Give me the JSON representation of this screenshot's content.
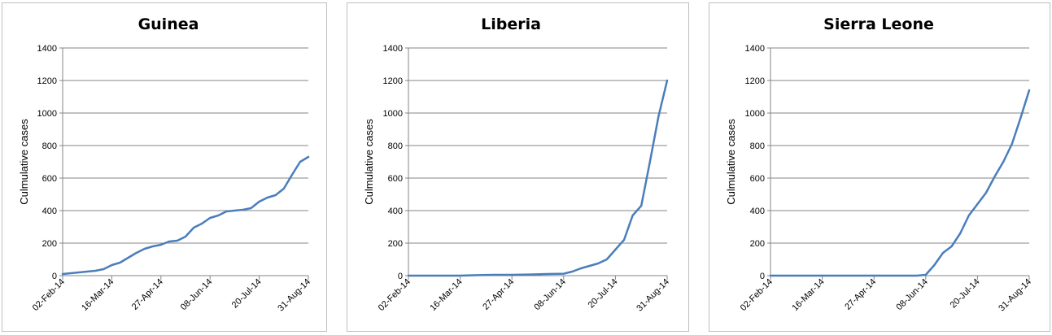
{
  "chart_data": [
    {
      "type": "line",
      "title": "Guinea",
      "ylabel": "Culmulative cases",
      "xlabel": "",
      "ylim": [
        0,
        1400
      ],
      "yticks": [
        0,
        200,
        400,
        600,
        800,
        1000,
        1200,
        1400
      ],
      "xticks": [
        "02-Feb-14",
        "16-Mar-14",
        "27-Apr-14",
        "08-Jun-14",
        "20-Jul-14",
        "31-Aug-14"
      ],
      "xlim": [
        "2014-02-02",
        "2014-08-31"
      ],
      "grid": true,
      "legend": "none",
      "color": "#4a7ebb",
      "series": [
        {
          "x": [
            "2014-02-02",
            "2014-02-16",
            "2014-03-02",
            "2014-03-09",
            "2014-03-16",
            "2014-03-23",
            "2014-03-30",
            "2014-04-06",
            "2014-04-13",
            "2014-04-20",
            "2014-04-27",
            "2014-05-04",
            "2014-05-11",
            "2014-05-18",
            "2014-05-25",
            "2014-06-01",
            "2014-06-08",
            "2014-06-15",
            "2014-06-22",
            "2014-06-29",
            "2014-07-06",
            "2014-07-13",
            "2014-07-20",
            "2014-07-27",
            "2014-08-03",
            "2014-08-10",
            "2014-08-17",
            "2014-08-24",
            "2014-08-31"
          ],
          "values": [
            10,
            20,
            30,
            40,
            65,
            80,
            110,
            140,
            165,
            180,
            190,
            210,
            215,
            240,
            295,
            320,
            355,
            370,
            395,
            400,
            405,
            415,
            455,
            480,
            495,
            535,
            620,
            700,
            730
          ]
        }
      ]
    },
    {
      "type": "line",
      "title": "Liberia",
      "ylabel": "Culmulative cases",
      "xlabel": "",
      "ylim": [
        0,
        1400
      ],
      "yticks": [
        0,
        200,
        400,
        600,
        800,
        1000,
        1200,
        1400
      ],
      "xticks": [
        "02-Feb-14",
        "16-Mar-14",
        "27-Apr-14",
        "08-Jun-14",
        "20-Jul-14",
        "31-Aug-14"
      ],
      "xlim": [
        "2014-02-02",
        "2014-08-31"
      ],
      "grid": true,
      "legend": "none",
      "color": "#4a7ebb",
      "series": [
        {
          "x": [
            "2014-02-02",
            "2014-03-16",
            "2014-03-30",
            "2014-04-13",
            "2014-04-27",
            "2014-05-11",
            "2014-05-25",
            "2014-06-08",
            "2014-06-15",
            "2014-06-22",
            "2014-06-29",
            "2014-07-06",
            "2014-07-13",
            "2014-07-20",
            "2014-07-27",
            "2014-08-03",
            "2014-08-10",
            "2014-08-17",
            "2014-08-24",
            "2014-08-31"
          ],
          "values": [
            0,
            0,
            3,
            5,
            5,
            7,
            10,
            12,
            25,
            45,
            60,
            75,
            100,
            160,
            220,
            370,
            430,
            700,
            980,
            1200
          ]
        }
      ]
    },
    {
      "type": "line",
      "title": "Sierra Leone",
      "ylabel": "Culmulative cases",
      "xlabel": "",
      "ylim": [
        0,
        1400
      ],
      "yticks": [
        0,
        200,
        400,
        600,
        800,
        1000,
        1200,
        1400
      ],
      "xticks": [
        "02-Feb-14",
        "16-Mar-14",
        "27-Apr-14",
        "08-Jun-14",
        "20-Jul-14",
        "31-Aug-14"
      ],
      "xlim": [
        "2014-02-02",
        "2014-08-31"
      ],
      "grid": true,
      "legend": "none",
      "color": "#4a7ebb",
      "series": [
        {
          "x": [
            "2014-02-02",
            "2014-05-25",
            "2014-06-01",
            "2014-06-08",
            "2014-06-15",
            "2014-06-22",
            "2014-06-29",
            "2014-07-06",
            "2014-07-13",
            "2014-07-20",
            "2014-07-27",
            "2014-08-03",
            "2014-08-10",
            "2014-08-17",
            "2014-08-24",
            "2014-08-31"
          ],
          "values": [
            0,
            0,
            0,
            5,
            65,
            140,
            180,
            260,
            370,
            440,
            510,
            610,
            700,
            810,
            970,
            1140
          ]
        }
      ]
    }
  ]
}
